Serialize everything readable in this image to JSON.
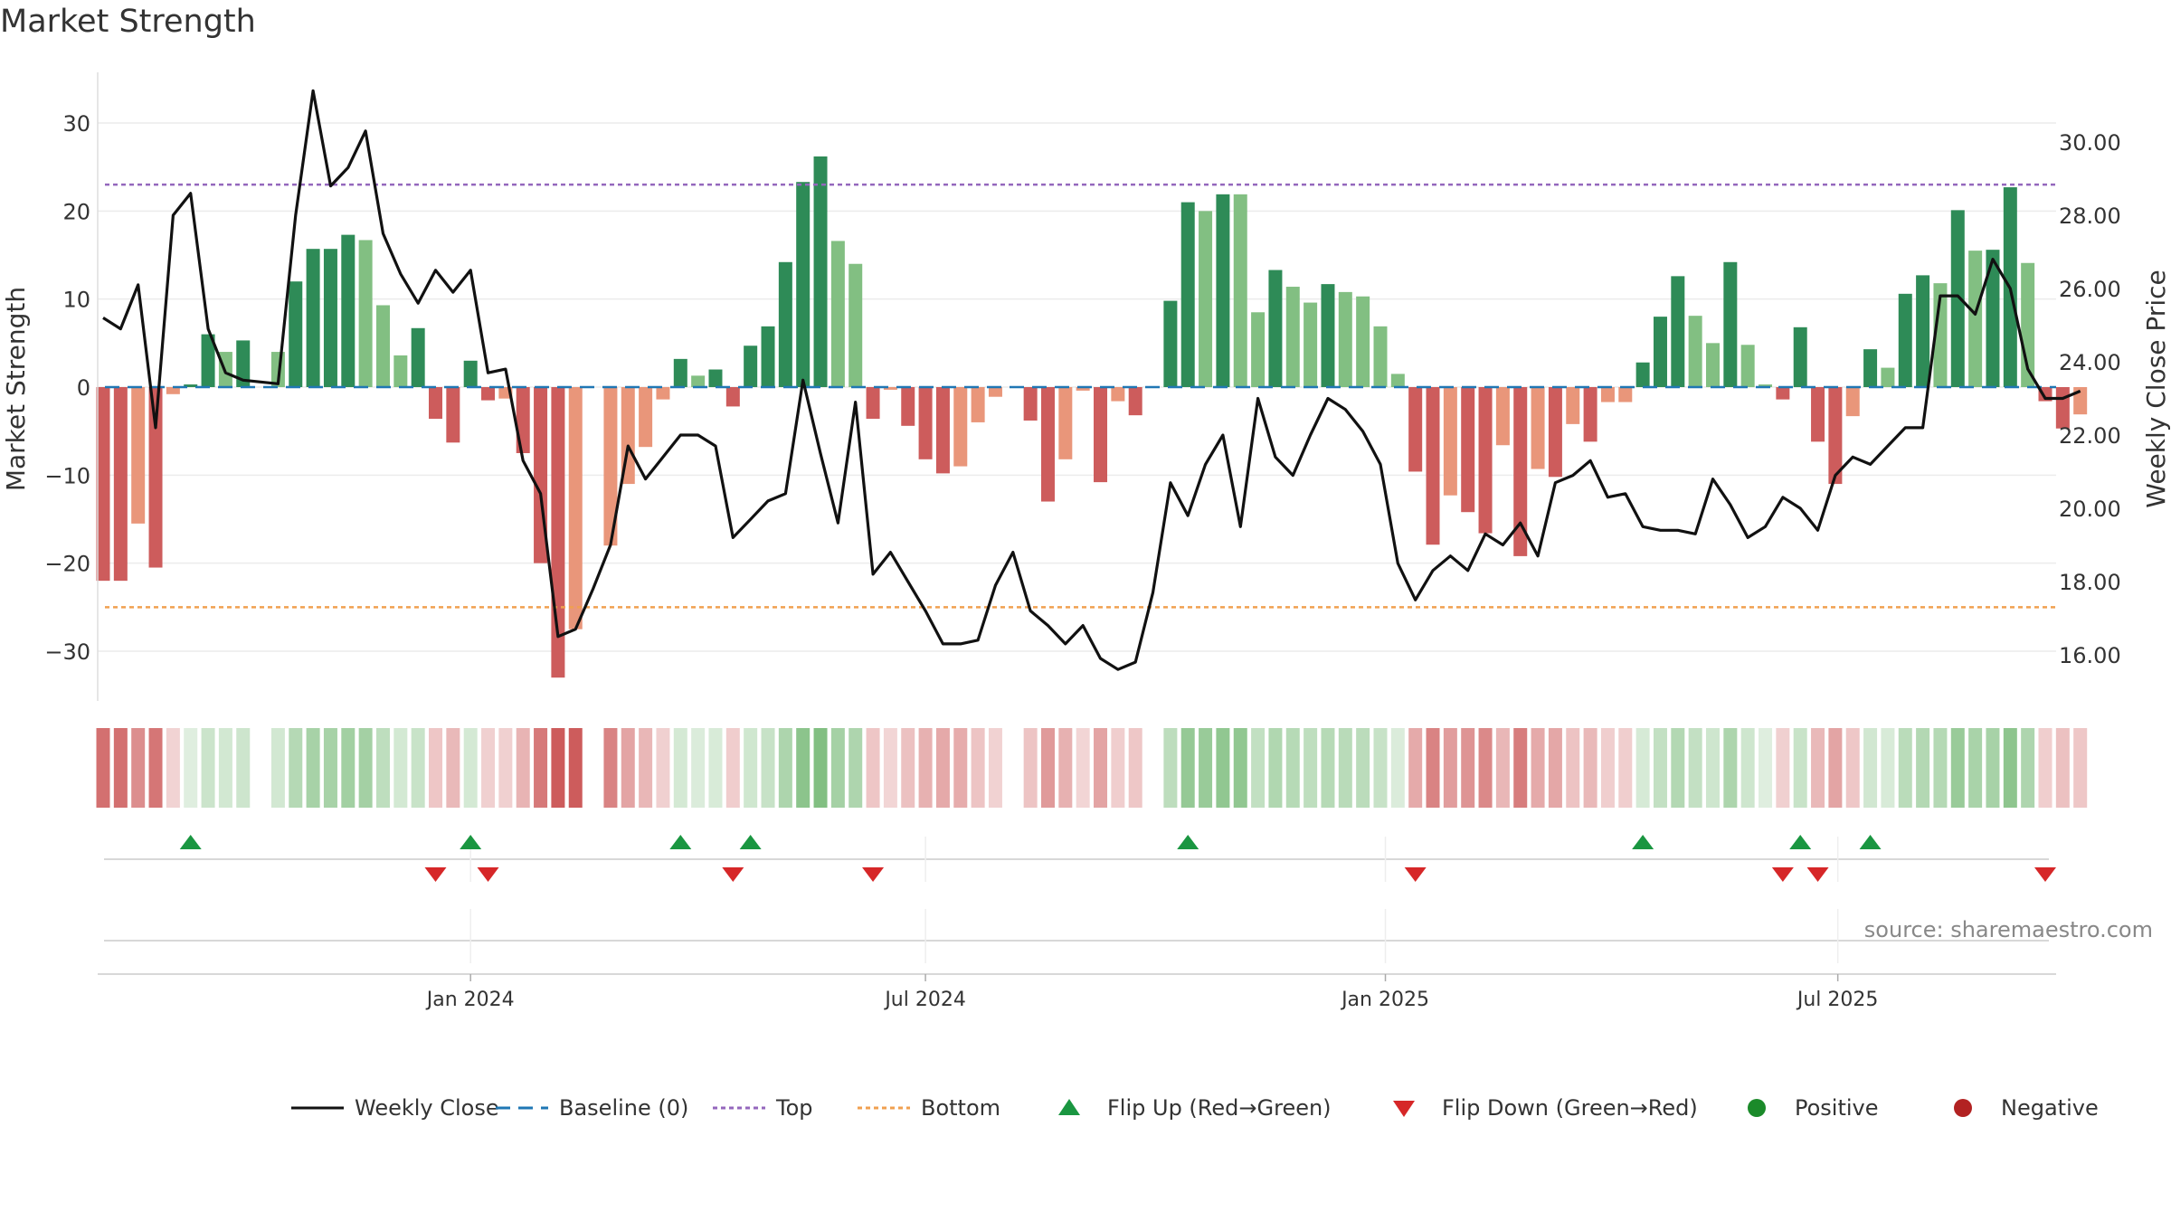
{
  "title": "Market Strength",
  "source": "source: sharemaestro.com",
  "colors": {
    "pos_dark": "#2e8b57",
    "pos_light": "#82bf82",
    "neg_dark": "#cd5c5c",
    "neg_light": "#e9967a",
    "close_line": "#111111",
    "baseline": "#1f77b4",
    "top": "#9467bd",
    "bottom": "#f0a050",
    "flip_up": "#1a9641",
    "flip_down": "#d62728",
    "positive": "#1b8a2a",
    "negative": "#b22222"
  },
  "chart_data": {
    "type": "bar+line",
    "title": "Market Strength",
    "ylabel_left": "Market Strength",
    "ylabel_right": "Weekly Close Price",
    "ylim_left": [
      -36,
      36
    ],
    "ylim_right": [
      14.6,
      31.9
    ],
    "left_ticks": [
      30,
      20,
      10,
      0,
      -10,
      -20,
      -30
    ],
    "left_tick_labels": [
      "30",
      "20",
      "10",
      "0",
      "−10",
      "−20",
      "−30"
    ],
    "right_ticks": [
      30,
      28,
      26,
      24,
      22,
      20,
      18,
      16
    ],
    "right_tick_labels": [
      "30.00",
      "28.00",
      "26.00",
      "24.00",
      "22.00",
      "20.00",
      "18.00",
      "16.00"
    ],
    "top_line": 23,
    "bottom_line": -25,
    "baseline": 0,
    "x_start": "2023-08-07",
    "x_end": "2025-09-22",
    "x_ticks": [
      "2024-01-01",
      "2024-07-01",
      "2025-01-01",
      "2025-07-01"
    ],
    "x_tick_labels": [
      "Jan 2024",
      "Jul 2024",
      "Jan 2025",
      "Jul 2025"
    ],
    "weeks": [
      {
        "d": "2023-08-07",
        "v": -22,
        "c": 25.2,
        "s": "dark"
      },
      {
        "d": "2023-08-14",
        "v": -22,
        "c": 24.9,
        "s": "dark"
      },
      {
        "d": "2023-08-21",
        "v": -15.5,
        "c": 26.1,
        "s": "light"
      },
      {
        "d": "2023-08-28",
        "v": -20.5,
        "c": 22.2,
        "s": "dark"
      },
      {
        "d": "2023-09-04",
        "v": -0.8,
        "c": 28.0,
        "s": "light"
      },
      {
        "d": "2023-09-11",
        "v": 0.3,
        "c": 28.6,
        "s": "dark"
      },
      {
        "d": "2023-09-18",
        "v": 6,
        "c": 24.9,
        "s": "dark"
      },
      {
        "d": "2023-09-25",
        "v": 4,
        "c": 23.7,
        "s": "light"
      },
      {
        "d": "2023-10-02",
        "v": 5.3,
        "c": 23.5,
        "s": "dark"
      },
      {
        "d": "2023-10-09",
        "v": null,
        "c": null,
        "s": ""
      },
      {
        "d": "2023-10-16",
        "v": 4,
        "c": 23.4,
        "s": "light"
      },
      {
        "d": "2023-10-23",
        "v": 12,
        "c": 28.0,
        "s": "dark"
      },
      {
        "d": "2023-10-30",
        "v": 15.7,
        "c": 31.4,
        "s": "dark"
      },
      {
        "d": "2023-11-06",
        "v": 15.7,
        "c": 28.8,
        "s": "dark"
      },
      {
        "d": "2023-11-13",
        "v": 17.3,
        "c": 29.3,
        "s": "dark"
      },
      {
        "d": "2023-11-20",
        "v": 16.7,
        "c": 30.3,
        "s": "light"
      },
      {
        "d": "2023-11-27",
        "v": 9.3,
        "c": 27.5,
        "s": "light"
      },
      {
        "d": "2023-12-04",
        "v": 3.6,
        "c": 26.4,
        "s": "light"
      },
      {
        "d": "2023-12-11",
        "v": 6.7,
        "c": 25.6,
        "s": "dark"
      },
      {
        "d": "2023-12-18",
        "v": -3.6,
        "c": 26.5,
        "s": "dark"
      },
      {
        "d": "2023-12-25",
        "v": -6.3,
        "c": 25.9,
        "s": "dark"
      },
      {
        "d": "2024-01-01",
        "v": 3,
        "c": 26.5,
        "s": "dark"
      },
      {
        "d": "2024-01-08",
        "v": -1.5,
        "c": 23.7,
        "s": "dark"
      },
      {
        "d": "2024-01-15",
        "v": -1.3,
        "c": 23.8,
        "s": "light"
      },
      {
        "d": "2024-01-22",
        "v": -7.5,
        "c": 21.3,
        "s": "dark"
      },
      {
        "d": "2024-01-29",
        "v": -20,
        "c": 20.4,
        "s": "dark"
      },
      {
        "d": "2024-02-05",
        "v": -33,
        "c": 16.5,
        "s": "dark"
      },
      {
        "d": "2024-02-12",
        "v": -27.5,
        "c": 16.7,
        "s": "light"
      },
      {
        "d": "2024-02-19",
        "v": null,
        "c": 17.8,
        "s": ""
      },
      {
        "d": "2024-02-26",
        "v": -18,
        "c": 19.0,
        "s": "light"
      },
      {
        "d": "2024-03-04",
        "v": -11,
        "c": 21.7,
        "s": "light"
      },
      {
        "d": "2024-03-11",
        "v": -6.8,
        "c": 20.8,
        "s": "light"
      },
      {
        "d": "2024-03-18",
        "v": -1.4,
        "c": 21.4,
        "s": "light"
      },
      {
        "d": "2024-03-25",
        "v": 3.2,
        "c": 22.0,
        "s": "dark"
      },
      {
        "d": "2024-04-01",
        "v": 1.3,
        "c": 22.0,
        "s": "light"
      },
      {
        "d": "2024-04-08",
        "v": 2,
        "c": 21.7,
        "s": "dark"
      },
      {
        "d": "2024-04-15",
        "v": -2.2,
        "c": 19.2,
        "s": "dark"
      },
      {
        "d": "2024-04-22",
        "v": 4.7,
        "c": 19.7,
        "s": "dark"
      },
      {
        "d": "2024-04-29",
        "v": 6.9,
        "c": 20.2,
        "s": "dark"
      },
      {
        "d": "2024-05-06",
        "v": 14.2,
        "c": 20.4,
        "s": "dark"
      },
      {
        "d": "2024-05-13",
        "v": 23.3,
        "c": 23.5,
        "s": "dark"
      },
      {
        "d": "2024-05-20",
        "v": 26.2,
        "c": 21.5,
        "s": "dark"
      },
      {
        "d": "2024-05-27",
        "v": 16.6,
        "c": 19.6,
        "s": "light"
      },
      {
        "d": "2024-06-03",
        "v": 14,
        "c": 22.9,
        "s": "light"
      },
      {
        "d": "2024-06-10",
        "v": -3.6,
        "c": 18.2,
        "s": "dark"
      },
      {
        "d": "2024-06-17",
        "v": -0.3,
        "c": 18.8,
        "s": "light"
      },
      {
        "d": "2024-06-24",
        "v": -4.4,
        "c": 18.0,
        "s": "dark"
      },
      {
        "d": "2024-07-01",
        "v": -8.2,
        "c": 17.2,
        "s": "dark"
      },
      {
        "d": "2024-07-08",
        "v": -9.8,
        "c": 16.3,
        "s": "dark"
      },
      {
        "d": "2024-07-15",
        "v": -9,
        "c": 16.3,
        "s": "light"
      },
      {
        "d": "2024-07-22",
        "v": -4,
        "c": 16.4,
        "s": "light"
      },
      {
        "d": "2024-07-29",
        "v": -1.1,
        "c": 17.9,
        "s": "light"
      },
      {
        "d": "2024-08-05",
        "v": null,
        "c": 18.8,
        "s": ""
      },
      {
        "d": "2024-08-12",
        "v": -3.8,
        "c": 17.2,
        "s": "dark"
      },
      {
        "d": "2024-08-19",
        "v": -13,
        "c": 16.8,
        "s": "dark"
      },
      {
        "d": "2024-08-26",
        "v": -8.2,
        "c": 16.3,
        "s": "light"
      },
      {
        "d": "2024-09-02",
        "v": -0.4,
        "c": 16.8,
        "s": "light"
      },
      {
        "d": "2024-09-09",
        "v": -10.8,
        "c": 15.9,
        "s": "dark"
      },
      {
        "d": "2024-09-16",
        "v": -1.6,
        "c": 15.6,
        "s": "light"
      },
      {
        "d": "2024-09-23",
        "v": -3.2,
        "c": 15.8,
        "s": "dark"
      },
      {
        "d": "2024-09-30",
        "v": null,
        "c": 17.7,
        "s": ""
      },
      {
        "d": "2024-10-07",
        "v": 9.8,
        "c": 20.7,
        "s": "dark"
      },
      {
        "d": "2024-10-14",
        "v": 21,
        "c": 19.8,
        "s": "dark"
      },
      {
        "d": "2024-10-21",
        "v": 20,
        "c": 21.2,
        "s": "light"
      },
      {
        "d": "2024-10-28",
        "v": 21.9,
        "c": 22.0,
        "s": "dark"
      },
      {
        "d": "2024-11-04",
        "v": 21.9,
        "c": 19.5,
        "s": "light"
      },
      {
        "d": "2024-11-11",
        "v": 8.5,
        "c": 23.0,
        "s": "light"
      },
      {
        "d": "2024-11-18",
        "v": 13.3,
        "c": 21.4,
        "s": "dark"
      },
      {
        "d": "2024-11-25",
        "v": 11.4,
        "c": 20.9,
        "s": "light"
      },
      {
        "d": "2024-12-02",
        "v": 9.6,
        "c": 22.0,
        "s": "light"
      },
      {
        "d": "2024-12-09",
        "v": 11.7,
        "c": 23.0,
        "s": "dark"
      },
      {
        "d": "2024-12-16",
        "v": 10.8,
        "c": 22.7,
        "s": "light"
      },
      {
        "d": "2024-12-23",
        "v": 10.3,
        "c": 22.1,
        "s": "light"
      },
      {
        "d": "2024-12-30",
        "v": 6.9,
        "c": 21.2,
        "s": "light"
      },
      {
        "d": "2025-01-06",
        "v": 1.5,
        "c": 18.5,
        "s": "light"
      },
      {
        "d": "2025-01-13",
        "v": -9.6,
        "c": 17.5,
        "s": "dark"
      },
      {
        "d": "2025-01-20",
        "v": -17.9,
        "c": 18.3,
        "s": "dark"
      },
      {
        "d": "2025-01-27",
        "v": -12.3,
        "c": 18.7,
        "s": "light"
      },
      {
        "d": "2025-02-03",
        "v": -14.2,
        "c": 18.3,
        "s": "dark"
      },
      {
        "d": "2025-02-10",
        "v": -16.6,
        "c": 19.3,
        "s": "dark"
      },
      {
        "d": "2025-02-17",
        "v": -6.6,
        "c": 19.0,
        "s": "light"
      },
      {
        "d": "2025-02-24",
        "v": -19.2,
        "c": 19.6,
        "s": "dark"
      },
      {
        "d": "2025-03-03",
        "v": -9.3,
        "c": 18.7,
        "s": "light"
      },
      {
        "d": "2025-03-10",
        "v": -10.2,
        "c": 20.7,
        "s": "dark"
      },
      {
        "d": "2025-03-17",
        "v": -4.2,
        "c": 20.9,
        "s": "light"
      },
      {
        "d": "2025-03-24",
        "v": -6.2,
        "c": 21.3,
        "s": "dark"
      },
      {
        "d": "2025-03-31",
        "v": -1.7,
        "c": 20.3,
        "s": "light"
      },
      {
        "d": "2025-04-07",
        "v": -1.7,
        "c": 20.4,
        "s": "light"
      },
      {
        "d": "2025-04-14",
        "v": 2.8,
        "c": 19.5,
        "s": "dark"
      },
      {
        "d": "2025-04-21",
        "v": 8,
        "c": 19.4,
        "s": "dark"
      },
      {
        "d": "2025-04-28",
        "v": 12.6,
        "c": 19.4,
        "s": "dark"
      },
      {
        "d": "2025-05-05",
        "v": 8.1,
        "c": 19.3,
        "s": "light"
      },
      {
        "d": "2025-05-12",
        "v": 5,
        "c": 20.8,
        "s": "light"
      },
      {
        "d": "2025-05-19",
        "v": 14.2,
        "c": 20.1,
        "s": "dark"
      },
      {
        "d": "2025-05-26",
        "v": 4.8,
        "c": 19.2,
        "s": "light"
      },
      {
        "d": "2025-06-02",
        "v": 0.3,
        "c": 19.5,
        "s": "light"
      },
      {
        "d": "2025-06-09",
        "v": -1.4,
        "c": 20.3,
        "s": "dark"
      },
      {
        "d": "2025-06-16",
        "v": 6.8,
        "c": 20.0,
        "s": "dark"
      },
      {
        "d": "2025-06-23",
        "v": -6.2,
        "c": 19.4,
        "s": "dark"
      },
      {
        "d": "2025-06-30",
        "v": -11,
        "c": 20.9,
        "s": "dark"
      },
      {
        "d": "2025-07-07",
        "v": -3.3,
        "c": 21.4,
        "s": "light"
      },
      {
        "d": "2025-07-14",
        "v": 4.3,
        "c": 21.2,
        "s": "dark"
      },
      {
        "d": "2025-07-21",
        "v": 2.2,
        "c": 21.7,
        "s": "light"
      },
      {
        "d": "2025-07-28",
        "v": 10.6,
        "c": 22.2,
        "s": "dark"
      },
      {
        "d": "2025-08-04",
        "v": 12.7,
        "c": 22.2,
        "s": "dark"
      },
      {
        "d": "2025-08-11",
        "v": 11.8,
        "c": 25.8,
        "s": "light"
      },
      {
        "d": "2025-08-18",
        "v": 20.1,
        "c": 25.8,
        "s": "dark"
      },
      {
        "d": "2025-08-25",
        "v": 15.5,
        "c": 25.3,
        "s": "light"
      },
      {
        "d": "2025-09-01",
        "v": 15.6,
        "c": 26.8,
        "s": "dark"
      },
      {
        "d": "2025-09-08",
        "v": 22.7,
        "c": 26.0,
        "s": "dark"
      },
      {
        "d": "2025-09-15",
        "v": 14.1,
        "c": 23.8,
        "s": "light"
      },
      {
        "d": "2025-09-22",
        "v": -1.6,
        "c": 23.0,
        "s": "dark"
      },
      {
        "d": "2025-09-29",
        "v": -4.7,
        "c": 23.0,
        "s": "dark"
      },
      {
        "d": "2025-10-06",
        "v": -3.1,
        "c": 23.2,
        "s": "light"
      }
    ],
    "flip_up_dates": [
      "2023-09-11",
      "2024-01-01",
      "2024-03-25",
      "2024-04-22",
      "2024-10-14",
      "2025-04-14",
      "2025-06-16",
      "2025-07-14"
    ],
    "flip_down_dates": [
      "2023-12-18",
      "2024-01-08",
      "2024-04-15",
      "2024-06-10",
      "2025-01-13",
      "2025-06-09",
      "2025-06-23",
      "2025-09-22"
    ],
    "legend": [
      {
        "key": "weekly_close",
        "label": "Weekly Close"
      },
      {
        "key": "baseline",
        "label": "Baseline (0)"
      },
      {
        "key": "top",
        "label": "Top"
      },
      {
        "key": "bottom",
        "label": "Bottom"
      },
      {
        "key": "flip_up",
        "label": "Flip Up (Red→Green)"
      },
      {
        "key": "flip_down",
        "label": "Flip Down (Green→Red)"
      },
      {
        "key": "positive",
        "label": "Positive"
      },
      {
        "key": "negative",
        "label": "Negative"
      }
    ]
  }
}
